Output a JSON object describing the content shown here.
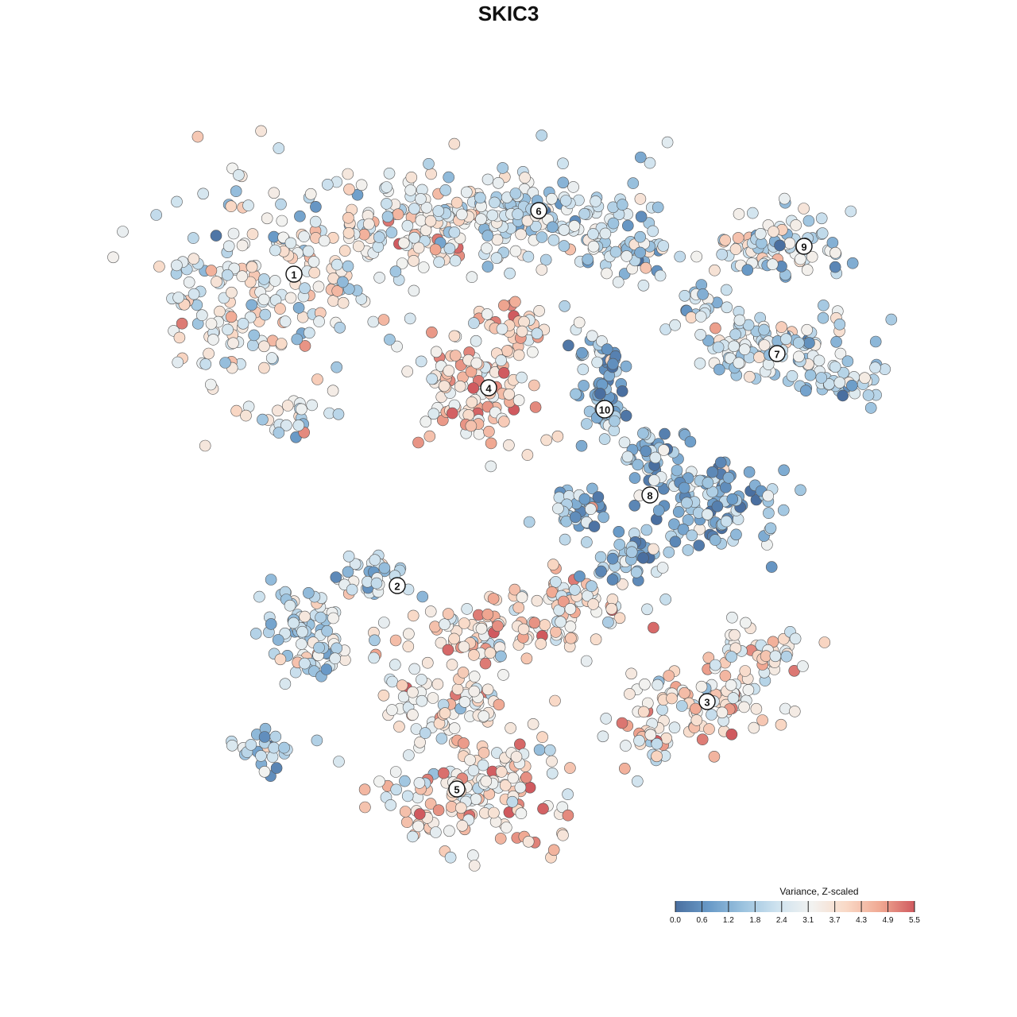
{
  "chart_data": {
    "type": "scatter",
    "title": "SKIC3",
    "xlabel": "",
    "ylabel": "",
    "grid": false,
    "legend": {
      "title": "Variance, Z-scaled",
      "placement": "bottom-right",
      "min": 0.0,
      "max": 5.5,
      "tick_labels": [
        "0.0",
        "0.6",
        "1.2",
        "1.8",
        "2.4",
        "3.1",
        "3.7",
        "4.3",
        "4.9",
        "5.5"
      ],
      "colors": [
        "#4a6fa0",
        "#6a9bc8",
        "#9cc3df",
        "#cfe3ef",
        "#f2f2f0",
        "#f9d9c6",
        "#f0a892",
        "#d05a5f"
      ]
    },
    "clusters": [
      {
        "label": "1",
        "mean": 3.0
      },
      {
        "label": "2",
        "mean": 2.2
      },
      {
        "label": "3",
        "mean": 3.4
      },
      {
        "label": "4",
        "mean": 3.7
      },
      {
        "label": "5",
        "mean": 3.6
      },
      {
        "label": "6",
        "mean": 2.3
      },
      {
        "label": "7",
        "mean": 2.2
      },
      {
        "label": "8",
        "mean": 1.5
      },
      {
        "label": "9",
        "mean": 2.4
      },
      {
        "label": "10",
        "mean": 1.2
      }
    ]
  }
}
